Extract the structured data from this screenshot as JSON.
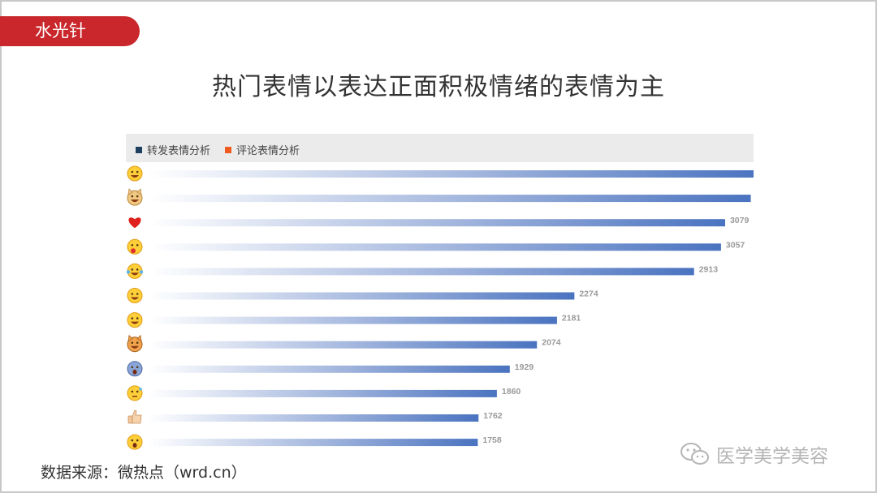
{
  "header": {
    "tag_label": "水光针"
  },
  "page_title": "热门表情以表达正面积极情绪的表情为主",
  "legend": [
    {
      "label": "转发表情分析",
      "color": "#1f3f5f"
    },
    {
      "label": "评论表情分析",
      "color": "#f05a1e"
    }
  ],
  "footer": {
    "source": "数据来源：微热点（wrd.cn）"
  },
  "watermark": {
    "text": "医学美学美容"
  },
  "colors": {
    "accent": "#c9272b",
    "bar": "#4a73c0",
    "bar_fade": "#ffffff"
  },
  "chart_data": {
    "type": "bar",
    "orientation": "horizontal",
    "categories": [
      "grin-emoji",
      "doge-emoji",
      "red-heart-emoji",
      "cheeky-emoji",
      "laugh-cry-emoji",
      "pray-emoji",
      "haha-emoji",
      "cat-emoji",
      "scared-emoji",
      "awkward-emoji",
      "thumbs-up-emoji",
      "shocked-emoji"
    ],
    "series": [
      {
        "name": "转发表情分析",
        "values": [
          3257,
          3216,
          3079,
          3057,
          2913,
          2274,
          2181,
          2074,
          1929,
          1860,
          1762,
          1758
        ]
      }
    ],
    "xlim": [
      0,
      3400
    ],
    "grid": false,
    "legend_position": "top-left",
    "data_labels": true
  }
}
